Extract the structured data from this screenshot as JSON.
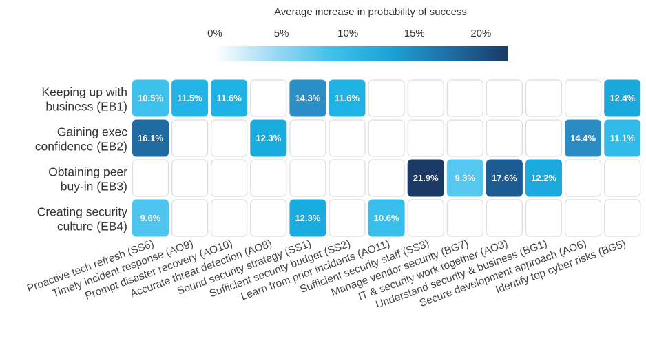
{
  "chart_data": {
    "type": "heatmap",
    "legend": {
      "title": "Average increase in probability of success",
      "ticks": [
        "0%",
        "5%",
        "10%",
        "15%",
        "20%"
      ],
      "tick_values": [
        0,
        5,
        10,
        15,
        20
      ],
      "range": [
        0,
        22
      ],
      "colors": [
        "#ffffff",
        "#9dd9f3",
        "#3ec1ec",
        "#1ba2d8",
        "#1d6fa6",
        "#1b3a66"
      ]
    },
    "rows": [
      "Keeping up with business (EB1)",
      "Gaining exec confidence (EB2)",
      "Obtaining peer buy-in (EB3)",
      "Creating security culture (EB4)"
    ],
    "row_lines": [
      [
        "Keeping up with",
        "business (EB1)"
      ],
      [
        "Gaining exec",
        "confidence (EB2)"
      ],
      [
        "Obtaining peer",
        "buy-in (EB3)"
      ],
      [
        "Creating security",
        "culture (EB4)"
      ]
    ],
    "columns": [
      "Proactive tech refresh (SS6)",
      "Timely incident response (AO9)",
      "Prompt disaster recovery (AO10)",
      "Accurate threat detection (AO8)",
      "Sound security strategy (SS1)",
      "Sufficient security budget (SS2)",
      "Learn from prior incidents (AO11)",
      "Sufficient security staff (SS3)",
      "Manage vendor security (BG7)",
      "IT & security work together (AO3)",
      "Understand security & business (BG1)",
      "Secure development approach (AO6)",
      "Identify top cyber risks (BG5)"
    ],
    "values": [
      [
        10.5,
        11.5,
        11.6,
        null,
        14.3,
        11.6,
        null,
        null,
        null,
        null,
        null,
        null,
        12.4
      ],
      [
        16.1,
        null,
        null,
        12.3,
        null,
        null,
        null,
        null,
        null,
        null,
        null,
        14.4,
        11.1
      ],
      [
        null,
        null,
        null,
        null,
        null,
        null,
        null,
        21.9,
        9.3,
        17.6,
        12.2,
        null,
        null
      ],
      [
        9.6,
        null,
        null,
        null,
        12.3,
        null,
        10.6,
        null,
        null,
        null,
        null,
        null,
        null
      ]
    ],
    "labels": [
      [
        "10.5%",
        "11.5%",
        "11.6%",
        "",
        "14.3%",
        "11.6%",
        "",
        "",
        "",
        "",
        "",
        "",
        "12.4%"
      ],
      [
        "16.1%",
        "",
        "",
        "12.3%",
        "",
        "",
        "",
        "",
        "",
        "",
        "",
        "14.4%",
        "11.1%"
      ],
      [
        "",
        "",
        "",
        "",
        "",
        "",
        "",
        "21.9%",
        "9.3%",
        "17.6%",
        "12.2%",
        "",
        ""
      ],
      [
        "9.6%",
        "",
        "",
        "",
        "12.3%",
        "",
        "10.6%",
        "",
        "",
        "",
        "",
        "",
        ""
      ]
    ],
    "cell_colors": [
      [
        "#3ec1ec",
        "#22b4e6",
        "#1fb2e5",
        "",
        "#2b8fc7",
        "#1fb2e5",
        "",
        "",
        "",
        "",
        "",
        "",
        "#1ba8dd"
      ],
      [
        "#1f6aa1",
        "",
        "",
        "#19acdf",
        "",
        "",
        "",
        "",
        "",
        "",
        "",
        "#2b8cc4",
        "#30bbea"
      ],
      [
        "",
        "",
        "",
        "",
        "",
        "",
        "",
        "#1b3a66",
        "#56c8ef",
        "#1d5c92",
        "#1aaade",
        "",
        ""
      ],
      [
        "#4ec5ee",
        "",
        "",
        "",
        "#19acdf",
        "",
        "#37beeb",
        "",
        "",
        "",
        "",
        "",
        ""
      ]
    ],
    "empty_cell_border": "#d8dde2",
    "text_color": "#333333"
  }
}
